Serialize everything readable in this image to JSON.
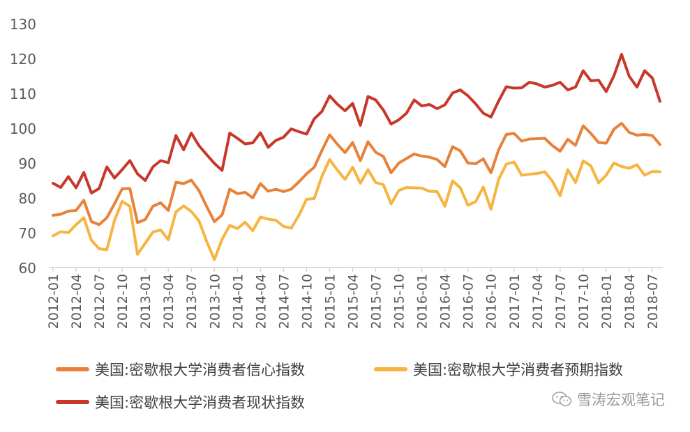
{
  "chart_data": {
    "type": "line",
    "title": "",
    "xlabel": "",
    "ylabel": "",
    "ylim": [
      60,
      130
    ],
    "yticks": [
      60,
      70,
      80,
      90,
      100,
      110,
      120,
      130
    ],
    "x": [
      "2012-01",
      "2012-02",
      "2012-03",
      "2012-04",
      "2012-05",
      "2012-06",
      "2012-07",
      "2012-08",
      "2012-09",
      "2012-10",
      "2012-11",
      "2012-12",
      "2013-01",
      "2013-02",
      "2013-03",
      "2013-04",
      "2013-05",
      "2013-06",
      "2013-07",
      "2013-08",
      "2013-09",
      "2013-10",
      "2013-11",
      "2013-12",
      "2014-01",
      "2014-02",
      "2014-03",
      "2014-04",
      "2014-05",
      "2014-06",
      "2014-07",
      "2014-08",
      "2014-09",
      "2014-10",
      "2014-11",
      "2014-12",
      "2015-01",
      "2015-02",
      "2015-03",
      "2015-04",
      "2015-05",
      "2015-06",
      "2015-07",
      "2015-08",
      "2015-09",
      "2015-10",
      "2015-11",
      "2015-12",
      "2016-01",
      "2016-02",
      "2016-03",
      "2016-04",
      "2016-05",
      "2016-06",
      "2016-07",
      "2016-08",
      "2016-09",
      "2016-10",
      "2016-11",
      "2016-12",
      "2017-01",
      "2017-02",
      "2017-03",
      "2017-04",
      "2017-05",
      "2017-06",
      "2017-07",
      "2017-08",
      "2017-09",
      "2017-10",
      "2017-11",
      "2017-12",
      "2018-01",
      "2018-02",
      "2018-03",
      "2018-04",
      "2018-05",
      "2018-06",
      "2018-07",
      "2018-08"
    ],
    "xticklabels": [
      "2012-01",
      "2012-04",
      "2012-07",
      "2012-10",
      "2013-01",
      "2013-04",
      "2013-07",
      "2013-10",
      "2014-01",
      "2014-04",
      "2014-07",
      "2014-10",
      "2015-01",
      "2015-04",
      "2015-07",
      "2015-10",
      "2016-01",
      "2016-04",
      "2016-07",
      "2016-10",
      "2017-01",
      "2017-04",
      "2017-07",
      "2017-10",
      "2018-01",
      "2018-04",
      "2018-07"
    ],
    "grid": false,
    "legend_position": "bottom",
    "series": [
      {
        "name": "美国:密歇根大学消费者信心指数",
        "color": "#E8813A",
        "values": [
          75.0,
          75.3,
          76.2,
          76.4,
          79.3,
          73.2,
          72.3,
          74.3,
          78.3,
          82.6,
          82.7,
          72.9,
          73.8,
          77.6,
          78.6,
          76.4,
          84.5,
          84.1,
          85.1,
          82.1,
          77.5,
          73.2,
          75.1,
          82.5,
          81.2,
          81.6,
          80.0,
          84.1,
          81.9,
          82.5,
          81.8,
          82.5,
          84.6,
          86.9,
          88.8,
          93.6,
          98.1,
          95.4,
          93.0,
          95.9,
          90.7,
          96.1,
          93.1,
          91.9,
          87.2,
          90.0,
          91.3,
          92.6,
          92.0,
          91.7,
          91.0,
          89.0,
          94.7,
          93.5,
          90.0,
          89.8,
          91.2,
          87.2,
          93.8,
          98.2,
          98.5,
          96.3,
          96.9,
          97.0,
          97.1,
          95.0,
          93.4,
          96.8,
          95.1,
          100.7,
          98.5,
          95.9,
          95.7,
          99.7,
          101.4,
          98.8,
          98.0,
          98.2,
          97.9,
          95.3
        ]
      },
      {
        "name": "美国:密歇根大学消费者预期指数",
        "color": "#F6B440",
        "values": [
          69.1,
          70.3,
          70.0,
          72.3,
          74.3,
          67.8,
          65.4,
          65.1,
          73.5,
          79.0,
          77.6,
          63.8,
          67.0,
          70.2,
          70.8,
          68.0,
          76.0,
          77.7,
          76.1,
          73.4,
          67.5,
          62.3,
          68.1,
          72.1,
          71.2,
          73.0,
          70.6,
          74.5,
          73.9,
          73.6,
          71.8,
          71.3,
          75.0,
          79.6,
          79.8,
          86.2,
          91.0,
          88.0,
          85.3,
          88.8,
          84.2,
          88.1,
          84.4,
          83.8,
          78.3,
          82.1,
          83.0,
          82.9,
          82.8,
          81.9,
          81.8,
          77.6,
          84.9,
          82.9,
          77.9,
          78.9,
          83.1,
          76.7,
          85.3,
          89.7,
          90.3,
          86.5,
          86.8,
          87.0,
          87.5,
          84.8,
          80.6,
          88.1,
          84.4,
          90.6,
          89.2,
          84.3,
          86.5,
          90.0,
          89.0,
          88.5,
          89.5,
          86.5,
          87.6,
          87.5
        ]
      },
      {
        "name": "美国:密歇根大学消费者现状指数",
        "color": "#C8382A",
        "values": [
          84.2,
          83.0,
          86.1,
          82.9,
          87.3,
          81.4,
          82.7,
          88.9,
          85.7,
          88.1,
          90.7,
          86.9,
          85.0,
          88.9,
          90.7,
          90.1,
          97.9,
          93.8,
          98.6,
          95.0,
          92.4,
          89.9,
          87.9,
          98.6,
          97.1,
          95.5,
          95.8,
          98.7,
          94.5,
          96.5,
          97.4,
          99.8,
          99.0,
          98.3,
          102.7,
          104.8,
          109.3,
          106.9,
          105.0,
          107.1,
          100.8,
          109.1,
          108.1,
          105.2,
          101.2,
          102.4,
          104.3,
          108.1,
          106.4,
          106.8,
          105.6,
          106.7,
          110.1,
          111.0,
          109.3,
          107.0,
          104.3,
          103.2,
          107.8,
          111.9,
          111.5,
          111.6,
          113.2,
          112.7,
          111.8,
          112.3,
          113.2,
          111.0,
          111.8,
          116.5,
          113.6,
          113.8,
          110.5,
          115.0,
          121.2,
          114.9,
          111.8,
          116.5,
          114.4,
          107.7
        ]
      }
    ]
  },
  "watermark": {
    "icon": "wechat-icon",
    "text": "雪涛宏观笔记",
    "color": "#9a9a9a"
  }
}
